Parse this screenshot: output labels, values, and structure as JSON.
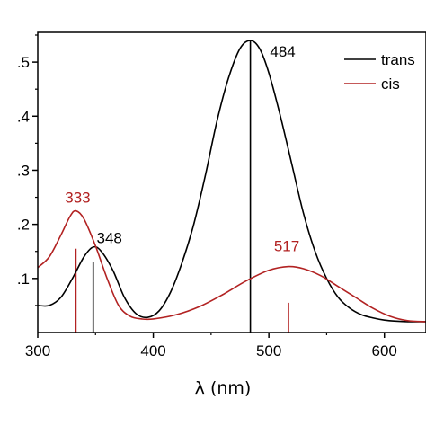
{
  "chart_data": {
    "type": "line",
    "xlabel": "λ (nm)",
    "ylabel": "",
    "xlim": [
      300,
      636
    ],
    "ylim": [
      0,
      0.555
    ],
    "x_ticks": [
      300,
      400,
      500,
      600
    ],
    "x_tick_labels": [
      "300",
      "400",
      "500",
      "600"
    ],
    "y_ticks": [
      0.1,
      0.2,
      0.3,
      0.4,
      0.5
    ],
    "y_tick_labels": [
      ".1",
      ".2",
      ".3",
      ".4",
      ".5"
    ],
    "grid": false,
    "legend_position": "top-right",
    "series": [
      {
        "name": "trans",
        "color": "#000000",
        "x": [
          300,
          310,
          320,
          330,
          340,
          348,
          355,
          365,
          375,
          385,
          395,
          405,
          415,
          425,
          435,
          445,
          455,
          465,
          475,
          484,
          492,
          500,
          510,
          520,
          530,
          540,
          550,
          560,
          570,
          580,
          590,
          600,
          610,
          620,
          636
        ],
        "y": [
          0.05,
          0.05,
          0.065,
          0.1,
          0.14,
          0.158,
          0.15,
          0.115,
          0.065,
          0.035,
          0.028,
          0.04,
          0.075,
          0.13,
          0.2,
          0.29,
          0.39,
          0.47,
          0.525,
          0.54,
          0.525,
          0.48,
          0.4,
          0.31,
          0.22,
          0.15,
          0.1,
          0.065,
          0.045,
          0.033,
          0.027,
          0.023,
          0.021,
          0.02,
          0.02
        ],
        "sticks": [
          {
            "x": 348,
            "height": 0.13
          },
          {
            "x": 484,
            "height": 0.54
          }
        ]
      },
      {
        "name": "cis",
        "color": "#b22222",
        "x": [
          300,
          310,
          320,
          328,
          333,
          340,
          350,
          360,
          370,
          380,
          390,
          400,
          420,
          440,
          460,
          480,
          500,
          517,
          530,
          545,
          560,
          575,
          590,
          605,
          620,
          636
        ],
        "y": [
          0.12,
          0.14,
          0.18,
          0.215,
          0.225,
          0.21,
          0.16,
          0.1,
          0.05,
          0.03,
          0.025,
          0.025,
          0.033,
          0.048,
          0.07,
          0.095,
          0.115,
          0.122,
          0.118,
          0.105,
          0.085,
          0.065,
          0.045,
          0.03,
          0.022,
          0.02
        ],
        "sticks": [
          {
            "x": 333,
            "height": 0.155
          },
          {
            "x": 517,
            "height": 0.055
          }
        ]
      }
    ],
    "peak_labels": [
      {
        "text": "333",
        "x": 333,
        "y": 0.24,
        "series": "cis"
      },
      {
        "text": "348",
        "x": 348,
        "y": 0.165,
        "series": "trans"
      },
      {
        "text": "484",
        "x": 484,
        "y": 0.51,
        "series": "trans"
      },
      {
        "text": "517",
        "x": 517,
        "y": 0.15,
        "series": "cis"
      }
    ]
  }
}
